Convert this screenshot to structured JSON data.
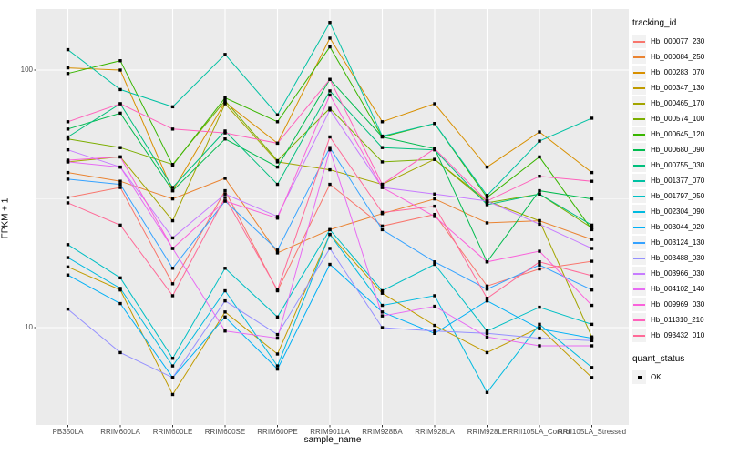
{
  "figure": {
    "background": "#ffffff",
    "panel_background": "#ebebeb",
    "grid_color": "#ffffff",
    "tick_label_color": "#4d4d4d",
    "point_color": "#000000"
  },
  "chart_data": {
    "type": "line",
    "title": "",
    "xlabel": "sample_name",
    "ylabel": "FPKM + 1",
    "y_scale": "log10",
    "y_ticks": [
      100,
      10
    ],
    "y_minor_gridlines": [
      31.62
    ],
    "ylim": [
      4.2,
      172
    ],
    "grid": true,
    "legend_position": "right",
    "point_shape": "square",
    "categories": [
      "PB350LA",
      "RRIM600LA",
      "RRIM600LE",
      "RRIM600SE",
      "RRIM600PE",
      "RRIM901LA",
      "RRIM928BA",
      "RRIM928LA",
      "RRIM928LE",
      "RRII105LA_Control",
      "RRII105LA_Stressed"
    ],
    "series": [
      {
        "name": "Hb_000077_230",
        "color": "#F8766D",
        "values": [
          32,
          35,
          14.8,
          34,
          13.9,
          36,
          24.8,
          27.5,
          14.5,
          16.9,
          18.1
        ]
      },
      {
        "name": "Hb_000084_250",
        "color": "#EA8331",
        "values": [
          40,
          37,
          31.6,
          38,
          19.5,
          24,
          27.7,
          31.6,
          25.5,
          26,
          22
        ]
      },
      {
        "name": "Hb_000283_070",
        "color": "#D89000",
        "values": [
          102,
          100,
          34,
          75,
          52,
          133,
          63,
          74,
          42,
          57.5,
          40
        ]
      },
      {
        "name": "Hb_000347_130",
        "color": "#C09B00",
        "values": [
          17.2,
          14,
          5.5,
          11.5,
          7.9,
          23,
          13.6,
          10.2,
          8,
          10,
          6.4
        ]
      },
      {
        "name": "Hb_000465_170",
        "color": "#A3A500",
        "values": [
          44,
          46,
          26,
          74,
          44,
          41,
          36,
          45,
          31,
          26,
          9.2
        ]
      },
      {
        "name": "Hb_000574_100",
        "color": "#7CAE00",
        "values": [
          54,
          50,
          43,
          76,
          44.5,
          71,
          44,
          45,
          30.5,
          33,
          24.4
        ]
      },
      {
        "name": "Hb_000645_120",
        "color": "#39B600",
        "values": [
          97,
          108.7,
          42.7,
          78,
          63,
          123,
          55,
          62,
          32,
          46,
          24
        ]
      },
      {
        "name": "Hb_000680_090",
        "color": "#00BB4E",
        "values": [
          59,
          68,
          34,
          54,
          42,
          92,
          55,
          49.5,
          18,
          34,
          31.6
        ]
      },
      {
        "name": "Hb_000755_030",
        "color": "#00BF7D",
        "values": [
          55,
          74,
          35,
          58,
          36,
          83,
          50,
          49,
          30,
          33,
          25
        ]
      },
      {
        "name": "Hb_001377_070",
        "color": "#00C1A3",
        "values": [
          120,
          84,
          72,
          115,
          67,
          153,
          55.4,
          62,
          32.6,
          53,
          65
        ]
      },
      {
        "name": "Hb_001797_050",
        "color": "#00BFC4",
        "values": [
          21,
          15.6,
          7.6,
          17,
          11,
          24,
          13.9,
          17.6,
          9.7,
          12,
          10.3
        ]
      },
      {
        "name": "Hb_002304_090",
        "color": "#00BAE0",
        "values": [
          18.7,
          14.2,
          7.1,
          13.9,
          7.1,
          23,
          12.2,
          13.3,
          5.6,
          10.3,
          7
        ]
      },
      {
        "name": "Hb_003044_020",
        "color": "#00B0F6",
        "values": [
          16,
          12.4,
          6.4,
          11,
          6.9,
          17.6,
          11.5,
          9.5,
          12.7,
          9.9,
          9.1
        ]
      },
      {
        "name": "Hb_003124_130",
        "color": "#35A2FF",
        "values": [
          37.7,
          36,
          17,
          31,
          20,
          50,
          24,
          18,
          14.1,
          17.5,
          14
        ]
      },
      {
        "name": "Hb_003488_030",
        "color": "#9590FF",
        "values": [
          11.8,
          8,
          6.4,
          12.7,
          9.4,
          20.3,
          10,
          9.7,
          9.5,
          9.1,
          8.9
        ]
      },
      {
        "name": "Hb_003966_030",
        "color": "#C77CFF",
        "values": [
          49,
          42,
          22.3,
          33,
          27,
          70,
          35,
          33,
          31,
          25.2,
          20.3
        ]
      },
      {
        "name": "Hb_004102_140",
        "color": "#E76BF3",
        "values": [
          44,
          42,
          20.3,
          9.7,
          9.1,
          49,
          11.1,
          12.1,
          9.2,
          8.5,
          8.5
        ]
      },
      {
        "name": "Hb_009969_030",
        "color": "#FA62DB",
        "values": [
          44.7,
          46,
          20.3,
          31,
          26.6,
          80,
          35,
          27,
          18,
          19.8,
          12.2
        ]
      },
      {
        "name": "Hb_011310_210",
        "color": "#FF62BC",
        "values": [
          63,
          74,
          59,
          57,
          52,
          92,
          36,
          49.5,
          31,
          38.7,
          37
        ]
      },
      {
        "name": "Hb_093432_010",
        "color": "#FF6A98",
        "values": [
          30.5,
          25,
          13.3,
          32,
          14,
          55,
          28,
          29.6,
          13,
          18,
          15.9
        ]
      }
    ]
  },
  "legend": {
    "tracking_title": "tracking_id",
    "quant_title": "quant_status",
    "quant_entries": [
      {
        "label": "OK",
        "marker": "black-square"
      }
    ]
  }
}
